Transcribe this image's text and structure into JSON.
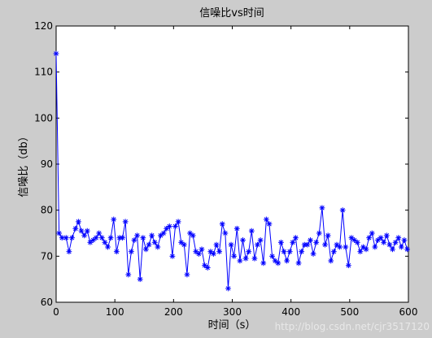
{
  "figure": {
    "background": "#cccccc",
    "plot_background": "#ffffff",
    "watermark_text": "http://blog.csdn.net/cjr3517120"
  },
  "chart_data": {
    "type": "line",
    "title": "信噪比vs时间",
    "xlabel": "时间（s）",
    "ylabel": "信噪比（db）",
    "xlim": [
      0,
      600
    ],
    "ylim": [
      60,
      120
    ],
    "xticks": [
      0,
      100,
      200,
      300,
      400,
      500,
      600
    ],
    "yticks": [
      60,
      70,
      80,
      90,
      100,
      110,
      120
    ],
    "grid": false,
    "series": [
      {
        "color": "#0000ff",
        "marker": "asterisk",
        "x": [
          0,
          5,
          10,
          17,
          22,
          27,
          33,
          38,
          43,
          48,
          53,
          58,
          63,
          68,
          73,
          78,
          83,
          88,
          93,
          98,
          103,
          108,
          113,
          118,
          123,
          128,
          133,
          138,
          143,
          148,
          153,
          158,
          163,
          168,
          173,
          178,
          183,
          188,
          193,
          198,
          203,
          208,
          213,
          218,
          223,
          228,
          233,
          238,
          243,
          248,
          253,
          258,
          263,
          268,
          273,
          278,
          283,
          288,
          293,
          298,
          303,
          308,
          313,
          318,
          323,
          328,
          333,
          338,
          343,
          348,
          353,
          358,
          363,
          368,
          373,
          378,
          383,
          388,
          393,
          398,
          403,
          408,
          413,
          418,
          423,
          428,
          433,
          438,
          443,
          448,
          453,
          458,
          463,
          468,
          473,
          478,
          483,
          488,
          493,
          498,
          503,
          508,
          513,
          518,
          523,
          528,
          533,
          538,
          543,
          548,
          553,
          558,
          563,
          568,
          573,
          578,
          583,
          588,
          593,
          598
        ],
        "y": [
          114,
          75,
          74,
          74,
          71,
          74,
          76,
          77.5,
          75.5,
          74.5,
          75.5,
          73,
          73.5,
          74,
          75,
          74,
          73,
          72,
          74,
          78,
          71,
          74,
          74,
          77.5,
          66,
          71,
          73.5,
          74.5,
          65,
          74,
          71.5,
          72.5,
          74.5,
          73,
          72,
          74.5,
          75,
          76,
          76.5,
          70,
          76.5,
          77.5,
          73,
          72.5,
          66,
          75,
          74.5,
          71,
          70.5,
          71.5,
          68,
          67.5,
          71,
          70.5,
          72.5,
          71,
          77,
          75,
          63,
          72.5,
          70,
          76,
          69,
          73.5,
          69.5,
          71,
          75.5,
          69.5,
          72.5,
          73.5,
          68.5,
          78,
          77,
          70,
          69,
          68.5,
          73,
          71,
          69,
          71,
          73,
          74,
          68.5,
          71,
          72.5,
          72.5,
          73.5,
          70.5,
          73,
          75,
          80.5,
          72.5,
          74.5,
          69,
          71,
          72.5,
          72,
          80,
          72,
          68,
          74,
          73.5,
          73,
          71,
          72,
          71.5,
          74,
          75,
          72,
          73.5,
          74,
          73,
          74.5,
          72.5,
          71.5,
          73,
          74,
          72,
          73.5,
          71.5
        ]
      }
    ]
  }
}
